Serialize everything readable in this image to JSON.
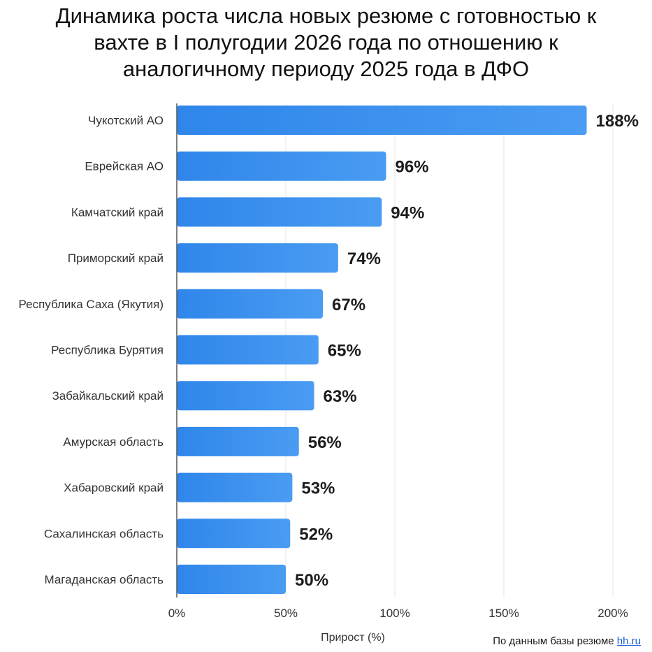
{
  "chart_data": {
    "type": "bar",
    "orientation": "horizontal",
    "title_lines": [
      "Динамика роста числа новых резюме с готовностью к",
      "вахте в I полугодии 2026 года по отношению к",
      "аналогичному периоду 2025 года в ДФО"
    ],
    "categories": [
      "Чукотский АО",
      "Еврейская АО",
      "Камчатский край",
      "Приморский край",
      "Республика Саха (Якутия)",
      "Республика Бурятия",
      "Забайкальский край",
      "Амурская область",
      "Хабаровский край",
      "Сахалинская область",
      "Магаданская область"
    ],
    "values": [
      188,
      96,
      94,
      74,
      67,
      65,
      63,
      56,
      53,
      52,
      50
    ],
    "value_labels": [
      "188%",
      "96%",
      "94%",
      "74%",
      "67%",
      "65%",
      "63%",
      "56%",
      "53%",
      "52%",
      "50%"
    ],
    "xlabel": "Прирост (%)",
    "ylabel": "",
    "xlim": [
      0,
      200
    ],
    "xticks": [
      0,
      50,
      100,
      150,
      200
    ],
    "xtick_labels": [
      "0%",
      "50%",
      "100%",
      "150%",
      "200%"
    ],
    "grid": true,
    "legend": "none",
    "bar_color": "#2f86ea",
    "bar_color_light": "#4a9cf2"
  },
  "source": {
    "prefix": "По данным базы резюме",
    "link": "hh.ru",
    "link_color": "#1a5fd6"
  }
}
